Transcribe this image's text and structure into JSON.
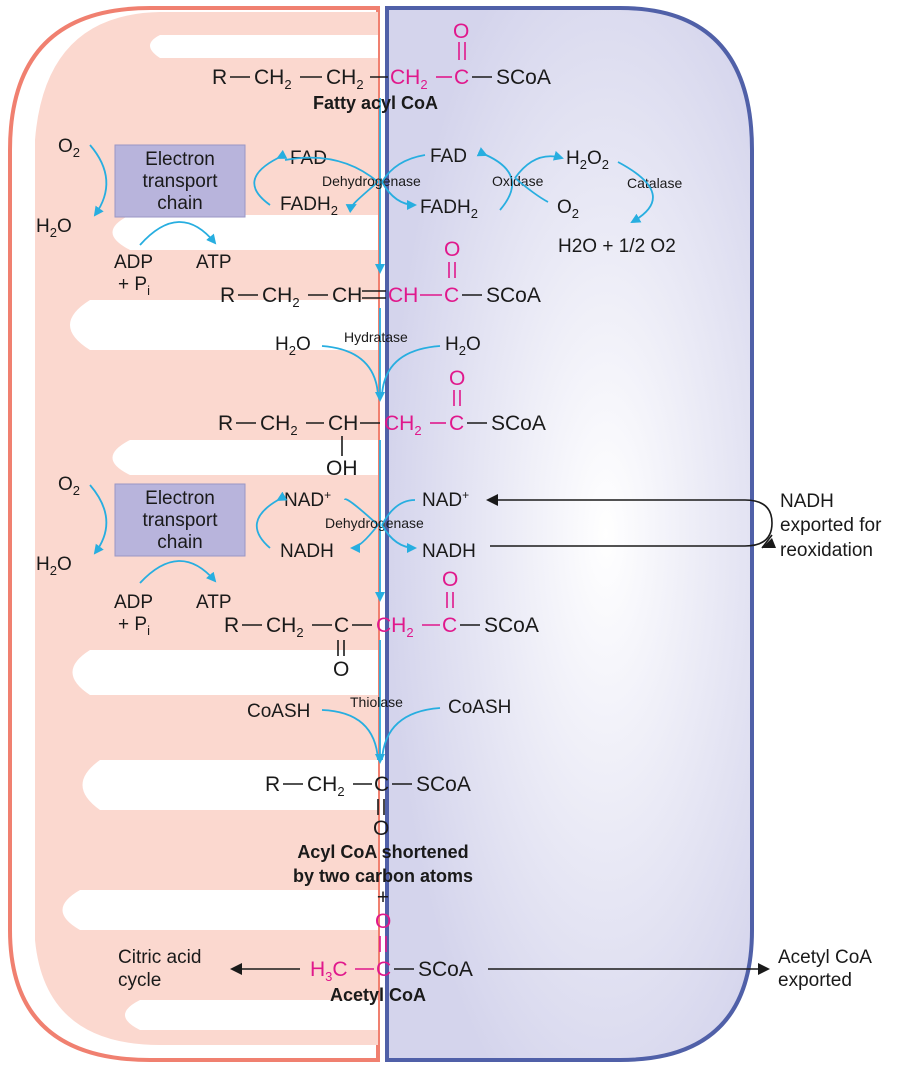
{
  "fatty_acyl": {
    "r": "R",
    "ch2a": "CH",
    "sub2": "2",
    "ch2b": "CH",
    "ch2c": "CH",
    "c": "C",
    "o": "O",
    "scoa": "SCoA",
    "label": "Fatty acyl CoA"
  },
  "etc": {
    "line1": "Electron",
    "line2": "transport",
    "line3": "chain"
  },
  "respiration": {
    "o2": "O",
    "o2sub": "2",
    "h2o": "H",
    "h2osub": "2",
    "h2o_o": "O",
    "adp": "ADP",
    "pi": "+ P",
    "pi_sub": "i",
    "atp": "ATP"
  },
  "step1": {
    "fad": "FAD",
    "fadh2": "FADH",
    "fadh2_sub": "2",
    "enzyme": "Dehydrogenase",
    "fad_r": "FAD",
    "fadh2_r": "FADH",
    "oxidase": "Oxidase",
    "h2o2": "H",
    "h2o2_a": "2",
    "h2o2_b": "O",
    "h2o2_c": "2",
    "o2": "O",
    "o2sub": "2",
    "catalase": "Catalase",
    "products": "H2O + 1/2 O2"
  },
  "enoyl": {
    "r": "R",
    "ch2": "CH",
    "sub2": "2",
    "ch": "CH",
    "ch_m": "CH",
    "c": "C",
    "o": "O",
    "scoa": "SCoA"
  },
  "step2": {
    "h2o_l": "H",
    "h2o_l_sub": "2",
    "h2o_l_o": "O",
    "enzyme": "Hydratase",
    "h2o_r": "H",
    "h2o_r_sub": "2",
    "h2o_r_o": "O"
  },
  "hydroxy": {
    "r": "R",
    "ch2": "CH",
    "sub2": "2",
    "ch": "CH",
    "oh": "OH",
    "ch2m": "CH",
    "c": "C",
    "o": "O",
    "scoa": "SCoA"
  },
  "step3": {
    "nad": "NAD",
    "plus": "+",
    "nadh": "NADH",
    "enzyme": "Dehydrogenase",
    "nad_r": "NAD",
    "nadh_r": "NADH"
  },
  "nadh_export": {
    "line1": "NADH",
    "line2": "exported for",
    "line3": "reoxidation"
  },
  "keto": {
    "r": "R",
    "ch2": "CH",
    "sub2": "2",
    "c1": "C",
    "o1": "O",
    "ch2m": "CH",
    "c2": "C",
    "o2": "O",
    "scoa": "SCoA"
  },
  "step4": {
    "coash_l": "CoASH",
    "enzyme": "Thiolase",
    "coash_r": "CoASH"
  },
  "shortened": {
    "r": "R",
    "ch2": "CH",
    "sub2": "2",
    "c": "C",
    "o": "O",
    "scoa": "SCoA",
    "label1": "Acyl CoA shortened",
    "label2": "by two carbon atoms",
    "plus": "+"
  },
  "acetyl": {
    "h3c": "H",
    "h3c_sub": "3",
    "h3c_c": "C",
    "c": "C",
    "o": "O",
    "scoa": "SCoA",
    "label": "Acetyl CoA"
  },
  "citric": {
    "line1": "Citric acid",
    "line2": "cycle"
  },
  "acetyl_export": {
    "line1": "Acetyl CoA",
    "line2": "exported"
  },
  "colors": {
    "mito": "#f08070",
    "mito_fill": "#fbd8cf",
    "perox": "#5060a8",
    "perox_fill": "#d8d8ee",
    "arrow": "#27aee0",
    "highlight": "#e0188c",
    "etc_box": "#b8b4dc"
  }
}
